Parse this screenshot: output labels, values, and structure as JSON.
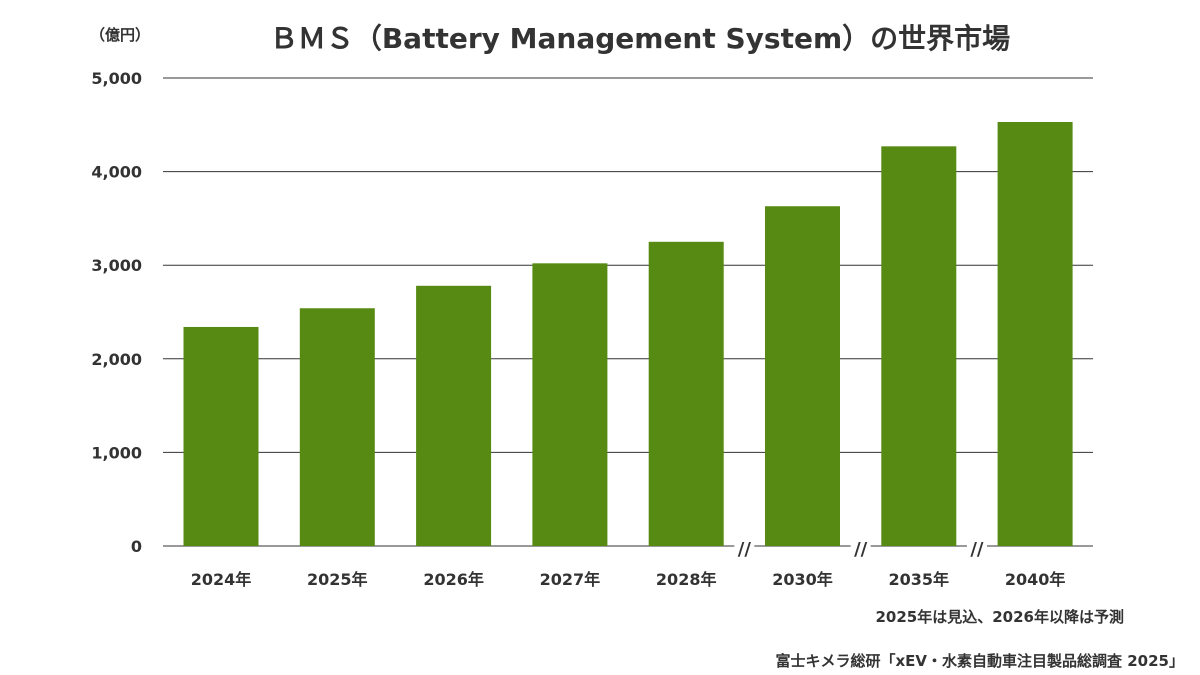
{
  "chart_data": {
    "type": "bar",
    "title": "ＢＭＳ（Battery Management System）の世界市場",
    "ylabel": "（億円）",
    "xlabel": "",
    "categories": [
      "2024年",
      "2025年",
      "2026年",
      "2027年",
      "2028年",
      "2030年",
      "2035年",
      "2040年"
    ],
    "values": [
      2340,
      2540,
      2780,
      3020,
      3250,
      3630,
      4270,
      4530
    ],
    "ylim": [
      0,
      5000
    ],
    "yticks": [
      0,
      1000,
      2000,
      3000,
      4000,
      5000
    ],
    "ytick_labels": [
      "0",
      "1,000",
      "2,000",
      "3,000",
      "4,000",
      "5,000"
    ],
    "grid": true,
    "axis_breaks_after": [
      "2028年",
      "2030年",
      "2035年"
    ],
    "axis_break_symbol": "//",
    "bar_color": "#568a12",
    "note": "2025年は見込、2026年以降は予測",
    "source": "富士キメラ総研「xEV・水素自動車注目製品総調査 2025」"
  }
}
